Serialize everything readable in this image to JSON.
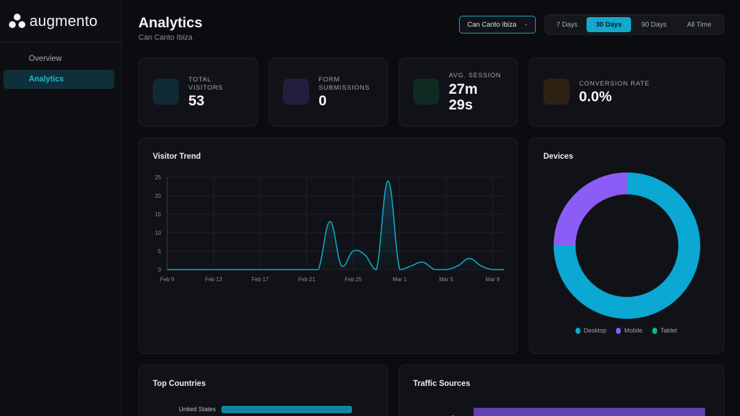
{
  "brand": {
    "name": "augmento"
  },
  "sidebar": {
    "items": [
      {
        "label": "Overview"
      },
      {
        "label": "Analytics"
      }
    ]
  },
  "header": {
    "title": "Analytics",
    "subtitle": "Can Canto Ibiza"
  },
  "site_select": {
    "value": "Can Canto Ibiza"
  },
  "date_range": {
    "options": [
      "7 Days",
      "30 Days",
      "90 Days",
      "All Time"
    ],
    "selected": "30 Days"
  },
  "stats": [
    {
      "label_line1": "TOTAL",
      "label_line2": "VISITORS",
      "value_line1": "53",
      "value_line2": "",
      "icon": "visitors-icon",
      "color": "#0f2a33"
    },
    {
      "label_line1": "FORM",
      "label_line2": "SUBMISSIONS",
      "value_line1": "0",
      "value_line2": "",
      "icon": "form-icon",
      "color": "#231e3d"
    },
    {
      "label_line1": "AVG. SESSION",
      "label_line2": "",
      "value_line1": "27m",
      "value_line2": "29s",
      "icon": "clock-icon",
      "color": "#102a22"
    },
    {
      "label_line1": "CONVERSION RATE",
      "label_line2": "",
      "value_line1": "0.0%",
      "value_line2": "",
      "icon": "conversion-icon",
      "color": "#2c2113"
    }
  ],
  "visitor_trend": {
    "title": "Visitor Trend"
  },
  "devices": {
    "title": "Devices"
  },
  "top_countries": {
    "title": "Top Countries"
  },
  "traffic_sources": {
    "title": "Traffic Sources"
  },
  "colors": {
    "accent": "#12a9cc",
    "desktop": "#0aa8d2",
    "mobile": "#8b5cf6",
    "tablet": "#10b981"
  },
  "chart_data": [
    {
      "type": "area",
      "title": "Visitor Trend",
      "x": [
        "Feb 9",
        "Feb 10",
        "Feb 11",
        "Feb 12",
        "Feb 13",
        "Feb 14",
        "Feb 15",
        "Feb 16",
        "Feb 17",
        "Feb 18",
        "Feb 19",
        "Feb 20",
        "Feb 21",
        "Feb 22",
        "Feb 23",
        "Feb 24",
        "Feb 25",
        "Feb 26",
        "Feb 27",
        "Feb 28",
        "Mar 1",
        "Mar 2",
        "Mar 3",
        "Mar 4",
        "Mar 5",
        "Mar 6",
        "Mar 7",
        "Mar 8",
        "Mar 9",
        "Mar 10"
      ],
      "x_tick_labels": [
        "Feb 9",
        "Feb 13",
        "Feb 17",
        "Feb 21",
        "Feb 25",
        "Mar 1",
        "Mar 5",
        "Mar 9"
      ],
      "series": [
        {
          "values": [
            0,
            0,
            0,
            0,
            0,
            0,
            0,
            0,
            0,
            0,
            0,
            0,
            0,
            0,
            13,
            1,
            5,
            4,
            0,
            24,
            0,
            1,
            2,
            0,
            0,
            1,
            3,
            1,
            0,
            0
          ]
        }
      ],
      "ylim": [
        0,
        25
      ],
      "y_ticks": [
        0,
        5,
        10,
        15,
        20,
        25
      ],
      "grid": true
    },
    {
      "type": "pie",
      "title": "Devices",
      "categories": [
        "Desktop",
        "Mobile",
        "Tablet"
      ],
      "values": [
        75,
        25,
        0
      ],
      "legend": "bottom"
    },
    {
      "type": "bar",
      "title": "Top Countries",
      "categories": [
        "United States"
      ],
      "values": [
        100
      ]
    },
    {
      "type": "bar",
      "title": "Traffic Sources",
      "categories": [
        "Direct"
      ],
      "values": [
        100
      ]
    }
  ]
}
